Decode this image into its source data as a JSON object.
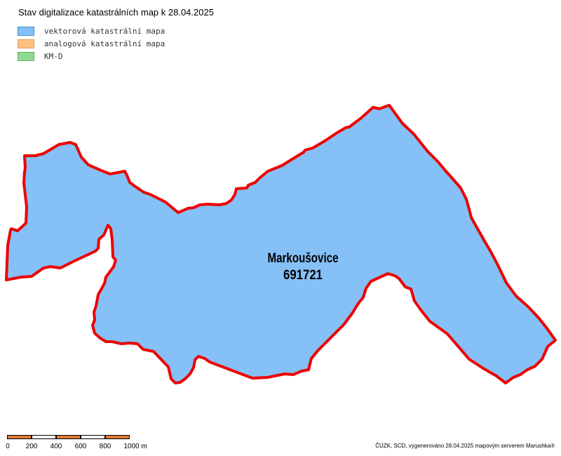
{
  "title": "Stav digitalizace katastrálních map k 28.04.2025",
  "legend": [
    {
      "label": "vektorová katastrální mapa",
      "fill": "#85c0f7",
      "stroke": "#3d8fd9"
    },
    {
      "label": "analogová katastrální mapa",
      "fill": "#ffc080",
      "stroke": "#e0a060"
    },
    {
      "label": "KM-D",
      "fill": "#90d990",
      "stroke": "#60b060"
    }
  ],
  "map": {
    "area_name": "Markoušovice",
    "area_code": "691721",
    "fill_color": "#85c0f7",
    "border_color": "#ee0000"
  },
  "scale_bar": {
    "ticks": [
      "0",
      "200",
      "400",
      "600",
      "800",
      "1000 m"
    ],
    "color_dark": "#e07b3a",
    "color_light": "#ffffff"
  },
  "credit": "ČÚZK, SCD, vygenerováno 28.04.2025 mapovým serverem Marushka®"
}
